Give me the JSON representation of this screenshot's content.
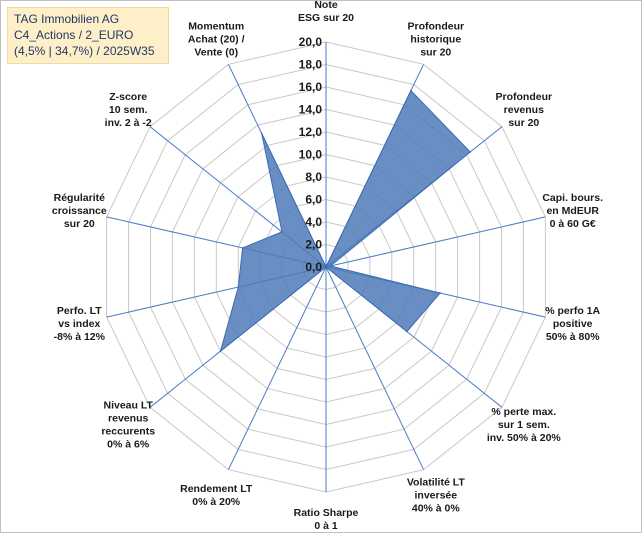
{
  "header": {
    "line1": "TAG Immobilien AG",
    "line2": "C4_Actions / 2_EURO",
    "line3": "(4,5% | 34,7%) / 2025W35"
  },
  "colors": {
    "series_fill": "#4f7ab8",
    "series_stroke": "#3b6bb0",
    "spoke": "#4a7cc4",
    "grid": "#c8c8c8",
    "info_bg": "#fdefc8"
  },
  "chart_data": {
    "type": "radar",
    "rmin": 0,
    "rmax": 20,
    "ticks": [
      "0,0",
      "2,0",
      "4,0",
      "6,0",
      "8,0",
      "10,0",
      "12,0",
      "14,0",
      "16,0",
      "18,0",
      "20,0"
    ],
    "grid": true,
    "axes": [
      [
        "Note",
        "ESG sur 20"
      ],
      [
        "Profondeur",
        "historique",
        "sur 20"
      ],
      [
        "Profondeur",
        "revenus",
        "sur 20"
      ],
      [
        "Capi. bours.",
        "en MdEUR",
        "0 à 60 G€"
      ],
      [
        "% perfo 1A",
        "positive",
        "50% à 80%"
      ],
      [
        "% perte max.",
        "sur 1 sem.",
        "inv. 50% à 20%"
      ],
      [
        "Volatilité LT",
        "inversée",
        "40% à 0%"
      ],
      [
        "Ratio Sharpe",
        "0 à 1"
      ],
      [
        "Rendement LT",
        "0% à 20%"
      ],
      [
        "Niveau LT",
        "revenus",
        "reccurents",
        "0% à 6%"
      ],
      [
        "Perfo. LT",
        "vs index",
        "-8% à 12%"
      ],
      [
        "Régularité",
        "croissance",
        "sur 20"
      ],
      [
        "Z-score",
        "10 sem.",
        "inv. 2 à -2"
      ],
      [
        "Momentum",
        "Achat (20) /",
        "Vente (0)"
      ]
    ],
    "series": [
      {
        "values": [
          0.0,
          17.4,
          16.4,
          0.4,
          10.4,
          9.2,
          0.0,
          0.0,
          0.0,
          12.0,
          8.0,
          7.6,
          5.0,
          13.2
        ]
      }
    ]
  }
}
